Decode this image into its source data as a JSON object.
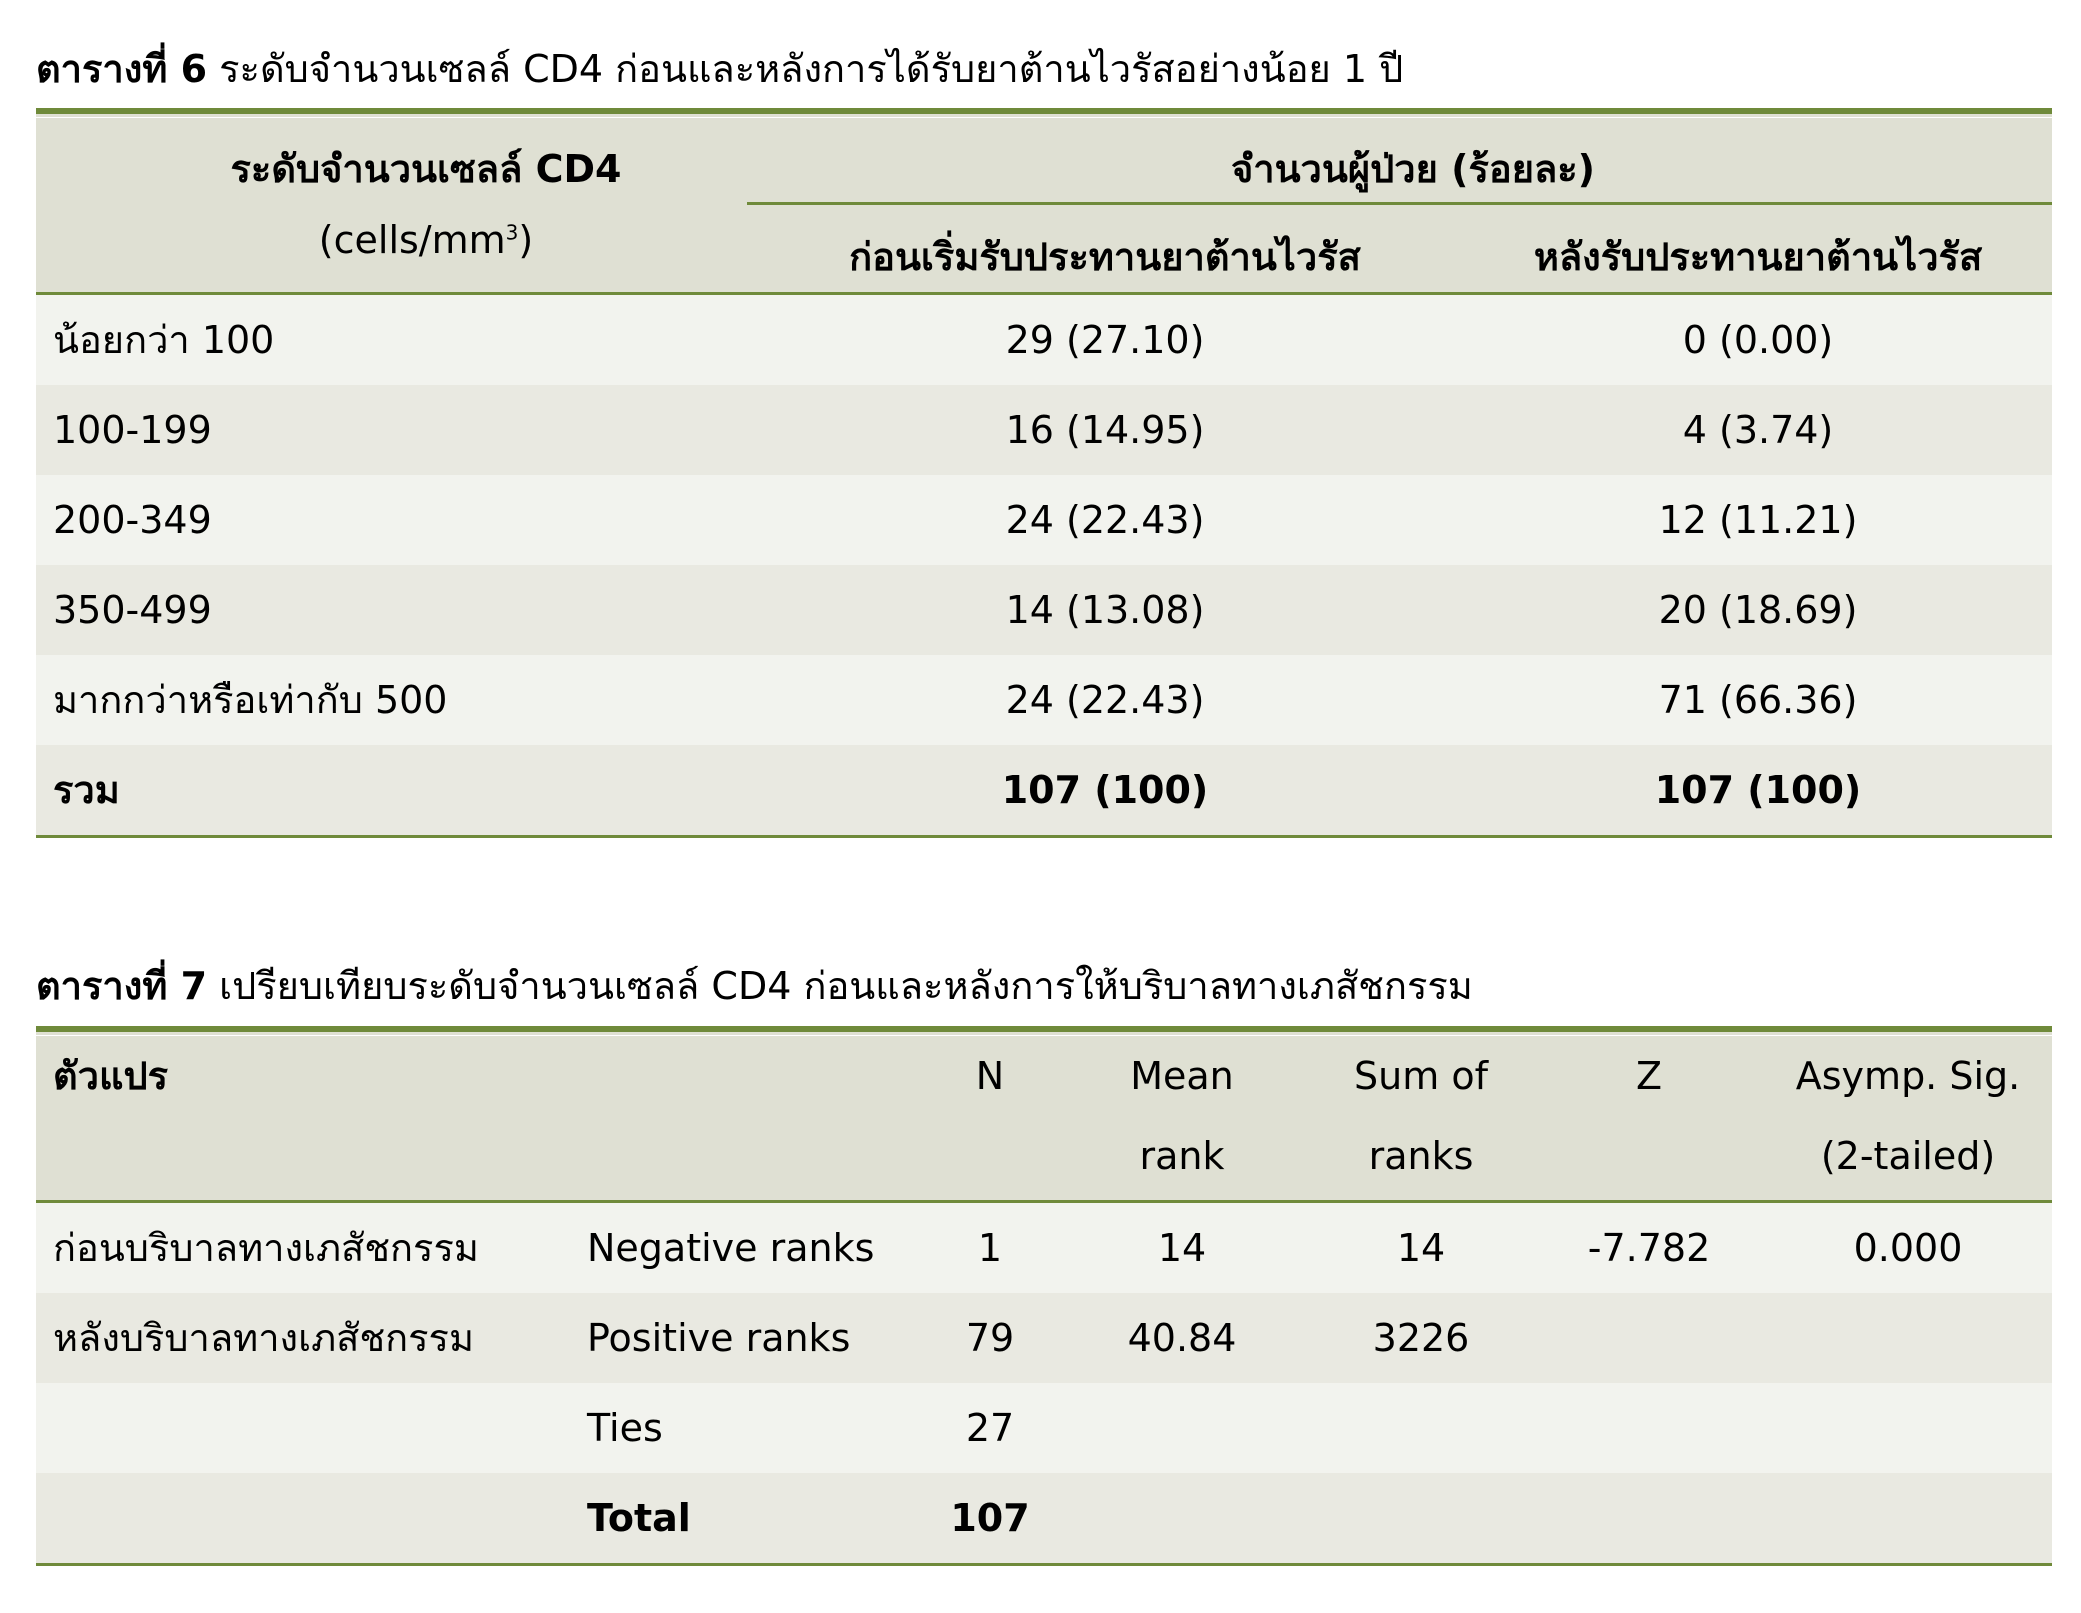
{
  "table6": {
    "label": "ตารางที่ 6",
    "caption": "ระดับจำนวนเซลล์ CD4 ก่อนและหลังการได้รับยาต้านไวรัสอย่างน้อย 1 ปี",
    "header": {
      "col1_line1": "ระดับจำนวนเซลล์ CD4",
      "col1_line2": "(cells/mm",
      "col1_sup": "3",
      "col1_close": ")",
      "group": "จำนวนผู้ป่วย (ร้อยละ)",
      "before": "ก่อนเริ่มรับประทานยาต้านไวรัส",
      "after": "หลังรับประทานยาต้านไวรัส"
    },
    "rows": [
      {
        "level": "น้อยกว่า 100",
        "before": "29 (27.10)",
        "after": "0 (0.00)"
      },
      {
        "level": "100-199",
        "before": "16 (14.95)",
        "after": "4 (3.74)"
      },
      {
        "level": "200-349",
        "before": "24 (22.43)",
        "after": "12 (11.21)"
      },
      {
        "level": "350-499",
        "before": "14 (13.08)",
        "after": "20 (18.69)"
      },
      {
        "level": "มากกว่าหรือเท่ากับ 500",
        "before": "24 (22.43)",
        "after": "71 (66.36)"
      },
      {
        "level": "รวม",
        "before": "107 (100)",
        "after": "107 (100)"
      }
    ]
  },
  "table7": {
    "label": "ตารางที่ 7",
    "caption": "เปรียบเทียบระดับจำนวนเซลล์ CD4 ก่อนและหลังการให้บริบาลทางเภสัชกรรม",
    "header": {
      "variable": "ตัวแปร",
      "n": "N",
      "mean_rank_1": "Mean",
      "mean_rank_2": "rank",
      "sum_ranks_1": "Sum of",
      "sum_ranks_2": "ranks",
      "z": "Z",
      "sig_1": "Asymp. Sig.",
      "sig_2": "(2-tailed)"
    },
    "rows": [
      {
        "variable": "ก่อนบริบาลทางเภสัชกรรม",
        "type": "Negative ranks",
        "n": "1",
        "mean_rank": "14",
        "sum_ranks": "14",
        "z": "-7.782",
        "sig": "0.000"
      },
      {
        "variable": "หลังบริบาลทางเภสัชกรรม",
        "type": "Positive ranks",
        "n": "79",
        "mean_rank": "40.84",
        "sum_ranks": "3226",
        "z": "",
        "sig": ""
      },
      {
        "variable": "",
        "type": "Ties",
        "n": "27",
        "mean_rank": "",
        "sum_ranks": "",
        "z": "",
        "sig": ""
      },
      {
        "variable": "",
        "type": "Total",
        "n": "107",
        "mean_rank": "",
        "sum_ranks": "",
        "z": "",
        "sig": ""
      }
    ]
  },
  "colors": {
    "rule": "#6f8a3a",
    "header_bg": "#dfe0d3",
    "row_light": "#f2f3ee",
    "row_dark": "#e9e9e1"
  }
}
